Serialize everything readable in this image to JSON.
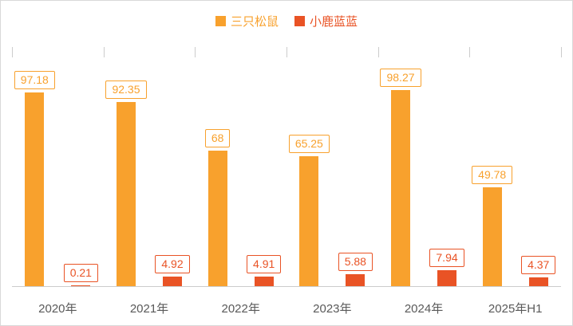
{
  "chart_data": {
    "type": "bar",
    "title": "",
    "xlabel": "",
    "ylabel": "",
    "categories": [
      "2020年",
      "2021年",
      "2022年",
      "2023年",
      "2024年",
      "2025年H1"
    ],
    "series": [
      {
        "name": "三只松鼠",
        "color": "#F8A12D",
        "values": [
          97.18,
          92.35,
          68,
          65.25,
          98.27,
          49.78
        ]
      },
      {
        "name": "小鹿蓝蓝",
        "color": "#E95325",
        "values": [
          0.21,
          4.92,
          4.91,
          5.88,
          7.94,
          4.37
        ]
      }
    ],
    "legend_position": "top",
    "ylim": [
      0,
      110
    ],
    "grid": false,
    "data_labels": true,
    "axis_line_color": "#cccccc",
    "axis_label_color": "#595959"
  }
}
